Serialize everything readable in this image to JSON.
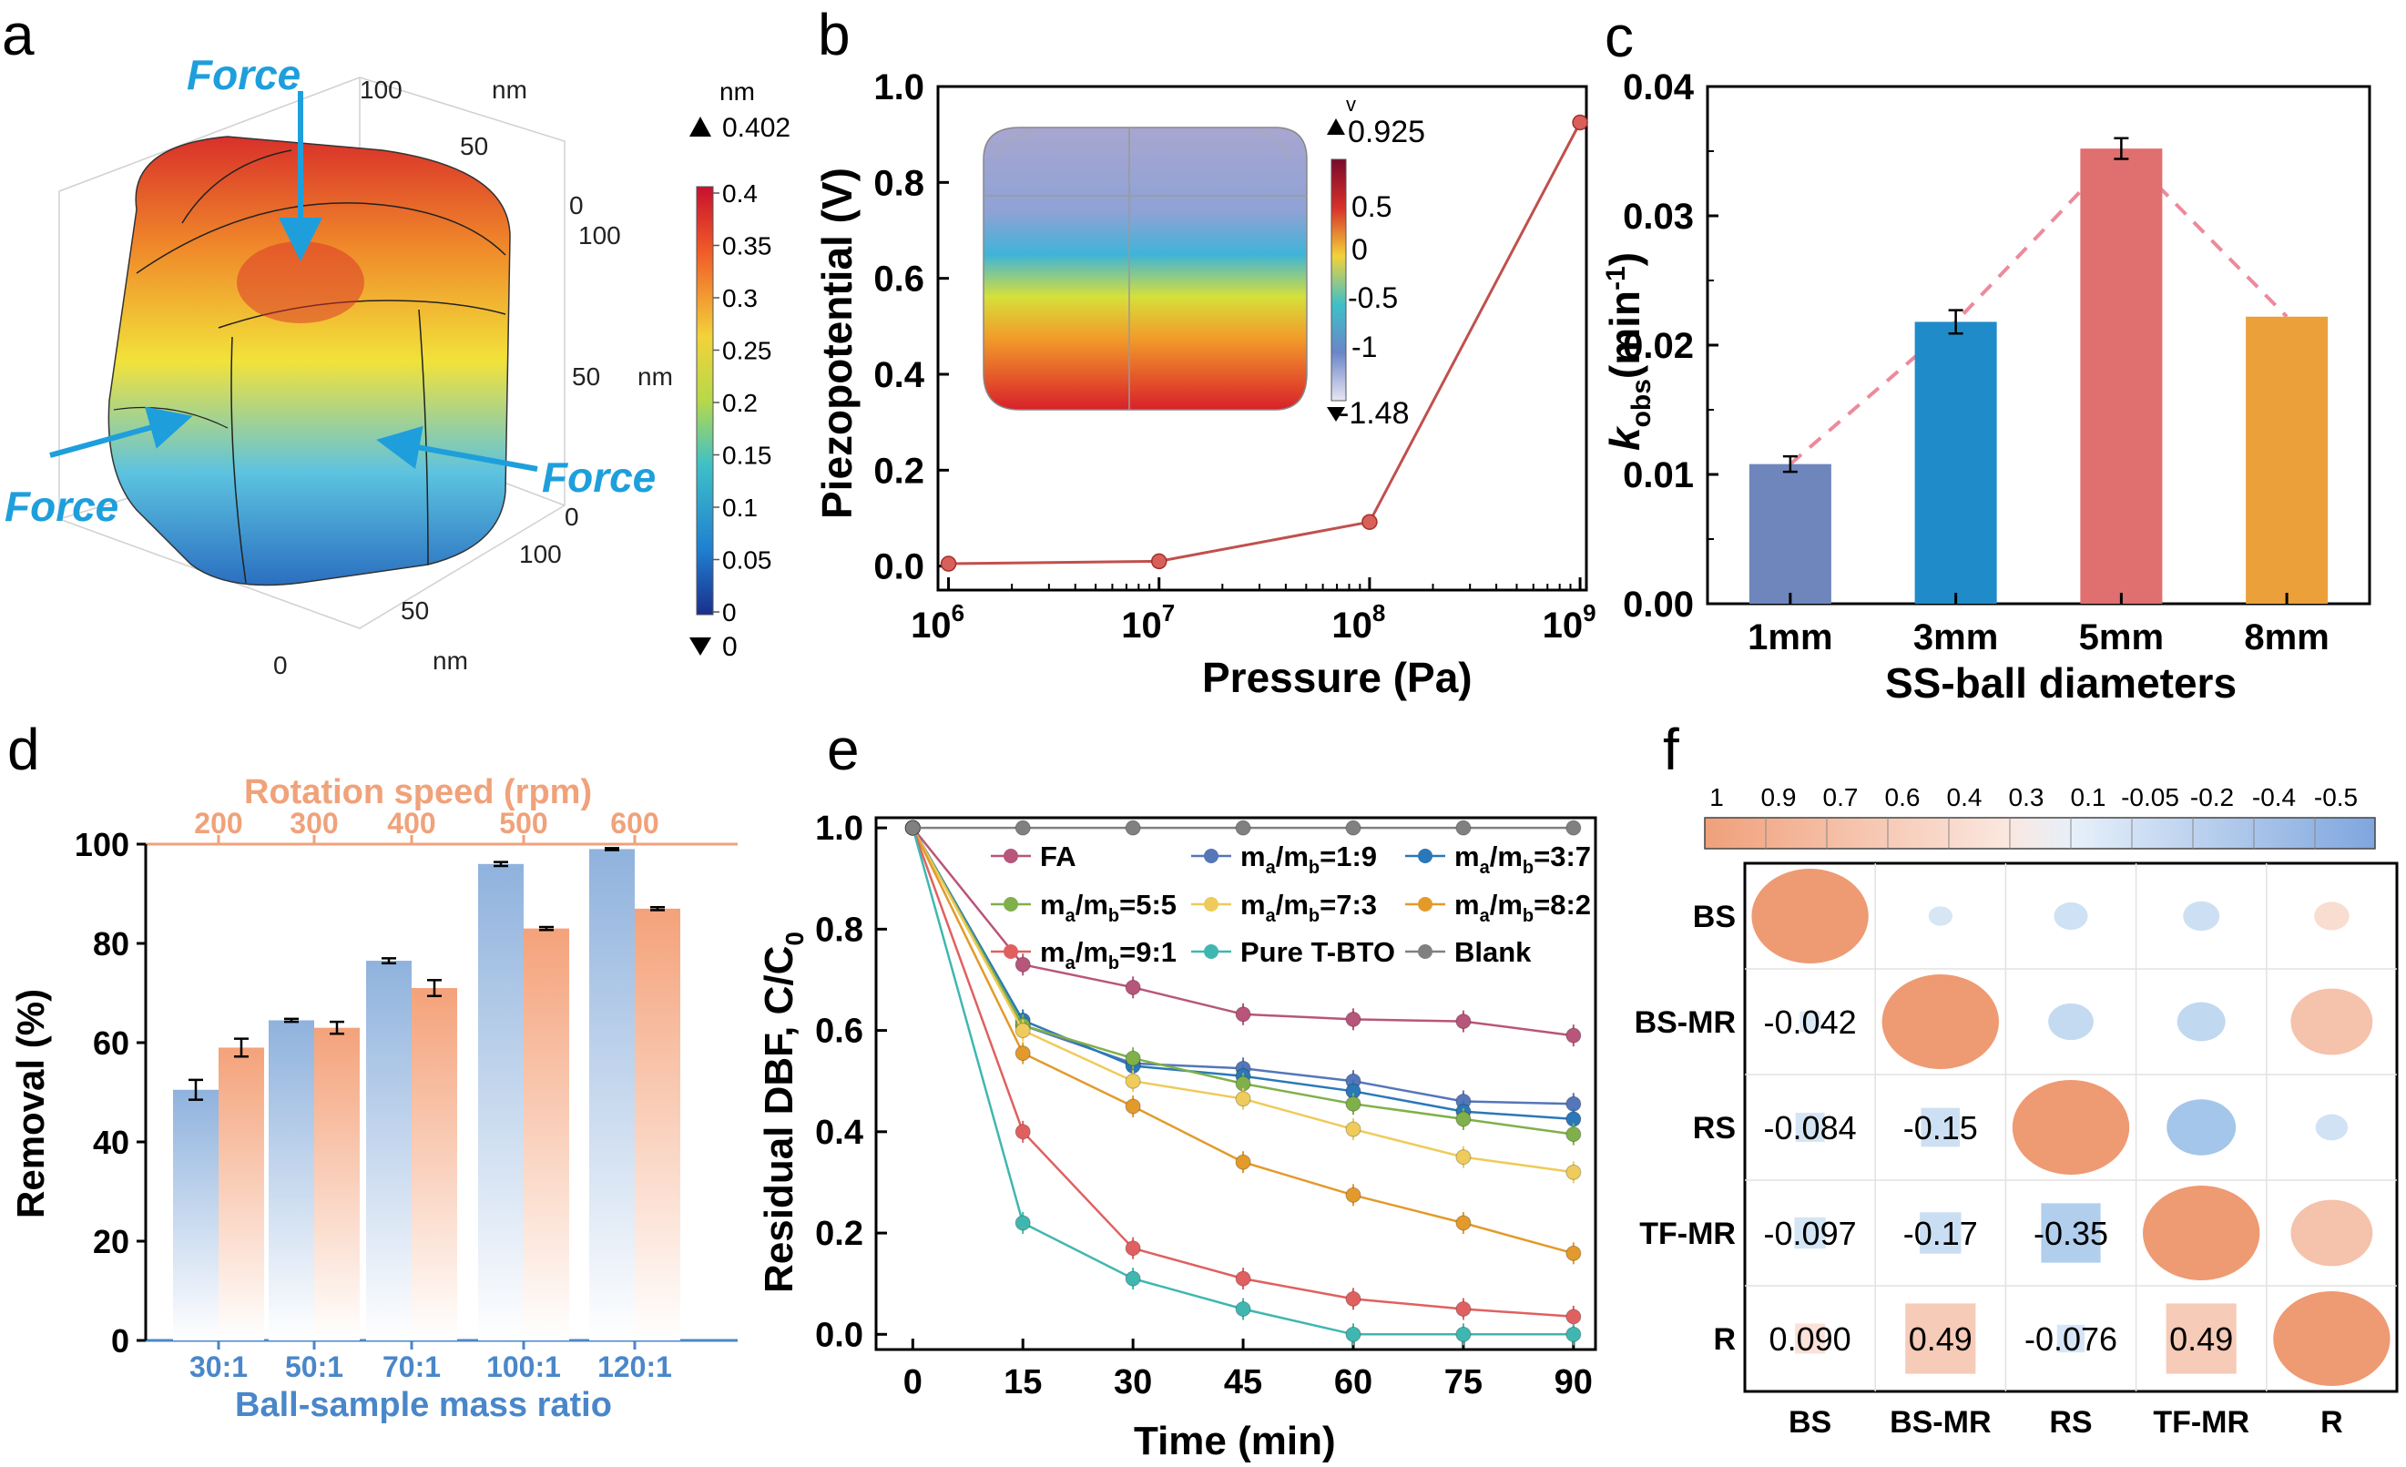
{
  "colors": {
    "axis": "#000000",
    "line_b": "#c0504d",
    "bar_1mm": "#6f86bd",
    "bar_3mm": "#1f8bc9",
    "bar_5mm": "#e06f6f",
    "bar_8mm": "#eba03a",
    "dash_c": "#ec8a9c",
    "force": "#1e9fdc",
    "blue_bar": "#8fb2dd",
    "orange_bar": "#f4a27a",
    "rot_axis": "#f0a27a",
    "mass_axis": "#4a87c9",
    "pos_corr": "#ee9a73",
    "neg_corr": "#9fc5e8"
  },
  "panels": {
    "a": {
      "label": "a",
      "force_labels": [
        "Force",
        "Force",
        "Force"
      ],
      "colorbar": {
        "unit": "nm",
        "max_label": "0.402",
        "min_label": "0",
        "ticks": [
          "0.4",
          "0.35",
          "0.3",
          "0.25",
          "0.2",
          "0.15",
          "0.1",
          "0.05",
          "0"
        ]
      },
      "axis_ticks": {
        "top": [
          "100",
          "50",
          "0"
        ],
        "right": [
          "100",
          "50",
          "0"
        ],
        "bottom": [
          "100",
          "50",
          "0"
        ],
        "units": [
          "nm",
          "nm",
          "nm"
        ]
      }
    },
    "b": {
      "label": "b",
      "inset": {
        "max_label": "0.925",
        "min_label": "-1.48",
        "ticks": [
          "0.5",
          "0",
          "-0.5",
          "-1"
        ],
        "top_mark": "v"
      }
    },
    "c": {
      "label": "c"
    },
    "d": {
      "label": "d"
    },
    "e": {
      "label": "e"
    },
    "f": {
      "label": "f"
    }
  },
  "chart_data": [
    {
      "id": "b",
      "type": "line",
      "xscale": "log",
      "x": [
        1000000,
        10000000,
        100000000,
        1000000000
      ],
      "y": [
        0.005,
        0.01,
        0.092,
        0.925
      ],
      "x_tick_bases": [
        "10",
        "10",
        "10",
        "10"
      ],
      "x_tick_exps": [
        "6",
        "7",
        "8",
        "9"
      ],
      "y_ticks": [
        "0.0",
        "0.2",
        "0.4",
        "0.6",
        "0.8",
        "1.0"
      ],
      "ylim": [
        -0.05,
        1.0
      ],
      "xlabel": "Pressure (Pa)",
      "ylabel": "Piezopotential (V)"
    },
    {
      "id": "c",
      "type": "bar",
      "categories": [
        "1mm",
        "3mm",
        "5mm",
        "8mm"
      ],
      "values": [
        0.0108,
        0.0218,
        0.0352,
        0.0222
      ],
      "errors": [
        0.0006,
        0.0009,
        0.0008,
        0.0
      ],
      "y_ticks": [
        "0.00",
        "0.01",
        "0.02",
        "0.03",
        "0.04"
      ],
      "ylim": [
        0,
        0.04
      ],
      "xlabel": "SS-ball diameters",
      "ylabel_main": "k",
      "ylabel_sub": "obs",
      "ylabel_unit": "(min",
      "ylabel_exp": "-1",
      "ylabel_close": ")"
    },
    {
      "id": "d",
      "type": "bar",
      "categories": [
        "30:1",
        "50:1",
        "70:1",
        "100:1",
        "120:1"
      ],
      "top_categories": [
        "200",
        "300",
        "400",
        "500",
        "600"
      ],
      "series": [
        {
          "name": "Ball-sample mass ratio",
          "values": [
            50.5,
            64.5,
            76.5,
            96.0,
            99.0
          ],
          "errors": [
            2.0,
            0.3,
            0.5,
            0.4,
            0.2
          ]
        },
        {
          "name": "Rotation speed (rpm)",
          "values": [
            59.0,
            63.0,
            71.0,
            83.0,
            87.0
          ],
          "errors": [
            1.8,
            1.2,
            1.6,
            0.3,
            0.3
          ]
        }
      ],
      "y_ticks": [
        "0",
        "20",
        "40",
        "60",
        "80",
        "100"
      ],
      "ylim": [
        0,
        100
      ],
      "xlabel": "Ball-sample mass ratio",
      "top_label": "Rotation speed (rpm)",
      "ylabel": "Removal (%)"
    },
    {
      "id": "e",
      "type": "line",
      "x": [
        0,
        15,
        30,
        45,
        60,
        75,
        90
      ],
      "x_ticks": [
        "0",
        "15",
        "30",
        "45",
        "60",
        "75",
        "90"
      ],
      "y_ticks": [
        "0.0",
        "0.2",
        "0.4",
        "0.6",
        "0.8",
        "1.0"
      ],
      "ylim": [
        -0.03,
        1.02
      ],
      "xlabel": "Time (min)",
      "ylabel": "Residual DBF, C/C",
      "ylabel_sub": "0",
      "series": [
        {
          "name": "FA",
          "color": "#b8557a",
          "values": [
            1.0,
            0.73,
            0.685,
            0.632,
            0.622,
            0.618,
            0.59
          ]
        },
        {
          "name_main": "m",
          "name_sub1": "a",
          "name_mid": "/m",
          "name_sub2": "b",
          "name_tail": "=1:9",
          "color": "#5576b8",
          "values": [
            1.0,
            0.61,
            0.535,
            0.525,
            0.5,
            0.46,
            0.455
          ]
        },
        {
          "name_main": "m",
          "name_sub1": "a",
          "name_mid": "/m",
          "name_sub2": "b",
          "name_tail": "=3:7",
          "color": "#2a78b8",
          "values": [
            1.0,
            0.62,
            0.53,
            0.51,
            0.48,
            0.44,
            0.425
          ]
        },
        {
          "name_main": "m",
          "name_sub1": "a",
          "name_mid": "/m",
          "name_sub2": "b",
          "name_tail": "=5:5",
          "color": "#7fb04a",
          "values": [
            1.0,
            0.61,
            0.545,
            0.495,
            0.455,
            0.425,
            0.395
          ]
        },
        {
          "name_main": "m",
          "name_sub1": "a",
          "name_mid": "/m",
          "name_sub2": "b",
          "name_tail": "=7:3",
          "color": "#eecb5a",
          "values": [
            1.0,
            0.6,
            0.5,
            0.465,
            0.405,
            0.35,
            0.32
          ]
        },
        {
          "name_main": "m",
          "name_sub1": "a",
          "name_mid": "/m",
          "name_sub2": "b",
          "name_tail": "=8:2",
          "color": "#e39a2a",
          "values": [
            1.0,
            0.555,
            0.45,
            0.34,
            0.275,
            0.22,
            0.16
          ]
        },
        {
          "name_main": "m",
          "name_sub1": "a",
          "name_mid": "/m",
          "name_sub2": "b",
          "name_tail": "=9:1",
          "color": "#e06060",
          "values": [
            1.0,
            0.4,
            0.17,
            0.11,
            0.07,
            0.05,
            0.035
          ]
        },
        {
          "name": "Pure T-BTO",
          "color": "#3fb7b0",
          "values": [
            1.0,
            0.22,
            0.11,
            0.05,
            0.0,
            0.0,
            0.0
          ]
        },
        {
          "name": "Blank",
          "color": "#808080",
          "values": [
            1.0,
            1.0,
            1.0,
            1.0,
            1.0,
            1.0,
            1.0
          ]
        }
      ]
    },
    {
      "id": "f",
      "type": "heatmap",
      "variables": [
        "BS",
        "BS-MR",
        "RS",
        "TF-MR",
        "R"
      ],
      "colorbar_ticks": [
        "1",
        "0.9",
        "0.7",
        "0.6",
        "0.4",
        "0.3",
        "0.1",
        "-0.05",
        "-0.2",
        "-0.4",
        "-0.5"
      ],
      "lower_labels": [
        [
          "",
          "",
          "",
          "",
          ""
        ],
        [
          "-0.042",
          "",
          "",
          "",
          ""
        ],
        [
          "-0.084",
          "-0.15",
          "",
          "",
          ""
        ],
        [
          "-0.097",
          "-0.17",
          "-0.35",
          "",
          ""
        ],
        [
          "0.090",
          "0.49",
          "-0.076",
          "0.49",
          ""
        ]
      ],
      "matrix": [
        [
          1.0,
          -0.042,
          -0.084,
          -0.097,
          0.09
        ],
        [
          -0.042,
          1.0,
          -0.15,
          -0.17,
          0.49
        ],
        [
          -0.084,
          -0.15,
          1.0,
          -0.35,
          -0.076
        ],
        [
          -0.097,
          -0.17,
          -0.35,
          1.0,
          0.49
        ],
        [
          0.09,
          0.49,
          -0.076,
          0.49,
          1.0
        ]
      ]
    }
  ]
}
